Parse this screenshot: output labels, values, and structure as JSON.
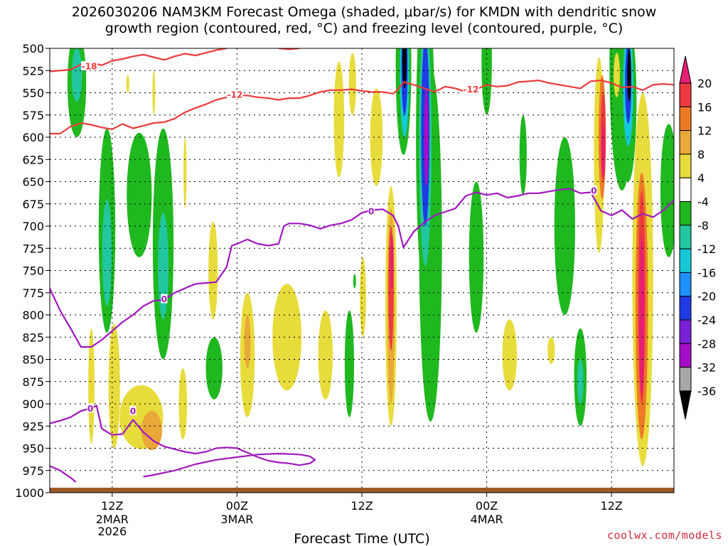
{
  "title": {
    "line1": "2026030206 NAM3KM Forecast Omega (shaded, μbar/s) for KMDN with dendritic snow",
    "line2": "growth region (contoured, red, °C) and freezing level (contoured, purple, °C)"
  },
  "credit": "coolwx.com/models",
  "chart_data": {
    "type": "time-height cross section",
    "xlabel": "Forecast Time (UTC)",
    "ylabel": "",
    "y_ticks": [
      "500",
      "525",
      "550",
      "575",
      "600",
      "625",
      "650",
      "675",
      "700",
      "725",
      "750",
      "775",
      "800",
      "825",
      "850",
      "875",
      "900",
      "925",
      "950",
      "975",
      "1000"
    ],
    "ylim": [
      500,
      1000
    ],
    "x_ticks": [
      {
        "hour": 6,
        "label": "12Z",
        "sub": [
          "2MAR",
          "2026"
        ]
      },
      {
        "hour": 18,
        "label": "00Z",
        "sub": [
          "3MAR"
        ]
      },
      {
        "hour": 30,
        "label": "12Z",
        "sub": []
      },
      {
        "hour": 42,
        "label": "00Z",
        "sub": [
          "4MAR"
        ]
      },
      {
        "hour": 54,
        "label": "12Z",
        "sub": []
      }
    ],
    "xlim": [
      0,
      60
    ],
    "colorbar": {
      "labels": [
        "20",
        "16",
        "12",
        "8",
        "4",
        "-4",
        "-8",
        "-12",
        "-16",
        "-20",
        "-24",
        "-28",
        "-32",
        "-36"
      ],
      "colors": {
        "gt20": "#e61e74",
        "16to20": "#ee3a3e",
        "12to16": "#ee7a26",
        "8to12": "#e9a838",
        "4to8": "#e8dc3c",
        "m4to4": "#ffffff",
        "m8tom4": "#1fb81f",
        "m12tom8": "#22c7a0",
        "m16tom12": "#16c8d8",
        "m20tom16": "#1e90ff",
        "m24tom20": "#1e3be6",
        "m28tom24": "#7a20d6",
        "m32tom28": "#a50dc8",
        "m36tom32": "#a8a8a8",
        "lt36": "#000000"
      }
    },
    "contours": {
      "dgz": {
        "color": "#ee3a3a",
        "levels": [
          "-18",
          "-12"
        ],
        "labels": [
          {
            "text": "-18",
            "hour": 3.8,
            "p": 520
          },
          {
            "text": "-12",
            "hour": 17.8,
            "p": 552
          },
          {
            "text": "-12",
            "hour": 40.5,
            "p": 546
          }
        ],
        "lines": [
          [
            [
              0,
              526
            ],
            [
              2,
              524
            ],
            [
              3,
              518
            ],
            [
              4,
              516
            ],
            [
              5,
              519
            ],
            [
              6,
              514
            ],
            [
              7,
              512
            ],
            [
              8,
              509
            ],
            [
              9,
              507
            ],
            [
              10,
              510
            ],
            [
              11,
              513
            ],
            [
              12,
              509
            ],
            [
              13,
              506
            ],
            [
              14,
              508
            ],
            [
              15,
              505
            ],
            [
              16,
              502
            ],
            [
              17,
              500
            ]
          ],
          [
            [
              22,
              500
            ],
            [
              23,
              501
            ],
            [
              24,
              500
            ]
          ],
          [
            [
              0,
              596
            ],
            [
              1,
              596
            ],
            [
              2,
              588
            ],
            [
              3,
              584
            ],
            [
              4,
              586
            ],
            [
              5,
              589
            ],
            [
              6,
              591
            ],
            [
              7,
              585
            ],
            [
              8,
              590
            ],
            [
              9,
              587
            ],
            [
              10,
              584
            ],
            [
              11,
              583
            ],
            [
              12,
              579
            ],
            [
              13,
              572
            ],
            [
              14,
              567
            ],
            [
              15,
              563
            ],
            [
              16,
              558
            ],
            [
              17,
              555
            ],
            [
              18,
              553
            ],
            [
              19,
              553
            ],
            [
              20,
              555
            ],
            [
              21,
              556
            ],
            [
              22,
              558
            ],
            [
              23,
              556
            ],
            [
              24,
              556
            ],
            [
              25,
              553
            ],
            [
              26,
              549
            ],
            [
              27,
              547
            ],
            [
              28,
              547
            ],
            [
              29,
              546
            ],
            [
              30,
              548
            ],
            [
              31,
              549
            ],
            [
              32,
              549
            ],
            [
              33,
              551
            ],
            [
              33.5,
              546
            ],
            [
              34,
              538
            ],
            [
              35,
              541
            ],
            [
              36,
              545
            ],
            [
              37,
              549
            ],
            [
              38,
              543
            ],
            [
              39,
              545
            ],
            [
              40,
              549
            ],
            [
              41,
              546
            ],
            [
              42,
              541
            ],
            [
              43,
              543
            ],
            [
              44,
              542
            ],
            [
              45,
              538
            ],
            [
              46,
              537
            ],
            [
              47,
              536
            ],
            [
              48,
              539
            ],
            [
              49,
              541
            ],
            [
              50,
              543
            ],
            [
              51,
              545
            ],
            [
              52,
              537
            ],
            [
              53,
              536
            ],
            [
              54,
              539
            ],
            [
              55,
              544
            ],
            [
              56,
              543
            ],
            [
              57,
              547
            ],
            [
              58,
              541
            ],
            [
              59,
              540
            ],
            [
              60,
              541
            ]
          ]
        ]
      },
      "freezing": {
        "color": "#a018c0",
        "level": "0",
        "labels": [
          {
            "text": "0",
            "hour": 11,
            "p": 782
          },
          {
            "text": "0",
            "hour": 30.9,
            "p": 683
          },
          {
            "text": "0",
            "hour": 52.3,
            "p": 660
          },
          {
            "text": "0",
            "hour": 3.9,
            "p": 905
          },
          {
            "text": "0",
            "hour": 8,
            "p": 908
          }
        ],
        "lines": [
          [
            [
              0,
              770
            ],
            [
              1,
              795
            ],
            [
              2,
              815
            ],
            [
              3,
              836
            ],
            [
              4,
              836
            ],
            [
              5,
              828
            ],
            [
              6,
              818
            ],
            [
              7,
              808
            ],
            [
              8,
              800
            ],
            [
              9,
              790
            ],
            [
              10,
              784
            ],
            [
              11,
              783
            ],
            [
              12,
              775
            ],
            [
              13,
              770
            ],
            [
              14,
              765
            ],
            [
              15,
              764
            ],
            [
              16,
              763
            ],
            [
              17,
              746
            ],
            [
              17.5,
              722
            ],
            [
              18,
              720
            ],
            [
              19,
              715
            ],
            [
              20,
              720
            ],
            [
              21,
              722
            ],
            [
              22,
              720
            ],
            [
              22.5,
              700
            ],
            [
              23,
              697
            ],
            [
              24,
              697
            ],
            [
              25,
              699
            ],
            [
              26,
              703
            ],
            [
              27,
              699
            ],
            [
              28,
              697
            ],
            [
              29,
              693
            ],
            [
              30,
              685
            ],
            [
              31,
              682
            ],
            [
              32,
              681
            ],
            [
              33,
              688
            ],
            [
              33.5,
              700
            ],
            [
              34,
              724
            ],
            [
              35,
              706
            ],
            [
              36,
              696
            ],
            [
              37,
              688
            ],
            [
              38,
              684
            ],
            [
              39,
              680
            ],
            [
              40,
              666
            ],
            [
              41,
              662
            ],
            [
              42,
              665
            ],
            [
              43,
              663
            ],
            [
              44,
              668
            ],
            [
              45,
              666
            ],
            [
              46,
              663
            ],
            [
              47,
              663
            ],
            [
              48,
              661
            ],
            [
              49,
              659
            ],
            [
              50,
              658
            ],
            [
              51,
              663
            ],
            [
              52,
              662
            ],
            [
              53,
              683
            ],
            [
              54,
              688
            ],
            [
              55,
              682
            ],
            [
              56,
              692
            ],
            [
              57,
              686
            ],
            [
              58,
              690
            ],
            [
              59,
              682
            ],
            [
              60,
              671
            ]
          ],
          [
            [
              0,
              922
            ],
            [
              1,
              919
            ],
            [
              2,
              915
            ],
            [
              3,
              908
            ],
            [
              4,
              905
            ],
            [
              4.5,
              902
            ],
            [
              5,
              928
            ],
            [
              6,
              935
            ],
            [
              7,
              934
            ],
            [
              8,
              918
            ],
            [
              9,
              932
            ],
            [
              10,
              942
            ],
            [
              11,
              948
            ],
            [
              12,
              951
            ],
            [
              13,
              954
            ],
            [
              14,
              956
            ],
            [
              15,
              954
            ],
            [
              16,
              950
            ],
            [
              17,
              949
            ],
            [
              18,
              950
            ],
            [
              19,
              955
            ],
            [
              20,
              960
            ],
            [
              21,
              964
            ],
            [
              22,
              966
            ],
            [
              23,
              967
            ],
            [
              24,
              969
            ],
            [
              25,
              967
            ],
            [
              25.5,
              963
            ],
            [
              25,
              959
            ],
            [
              24,
              957
            ],
            [
              22,
              956
            ],
            [
              20,
              957
            ],
            [
              18,
              960
            ],
            [
              16,
              963
            ],
            [
              14,
              968
            ],
            [
              12,
              975
            ],
            [
              10,
              980
            ],
            [
              9,
              982
            ]
          ],
          [
            [
              0,
              970
            ],
            [
              1,
              975
            ],
            [
              2,
              983
            ],
            [
              2.5,
              988
            ]
          ]
        ]
      }
    }
  }
}
